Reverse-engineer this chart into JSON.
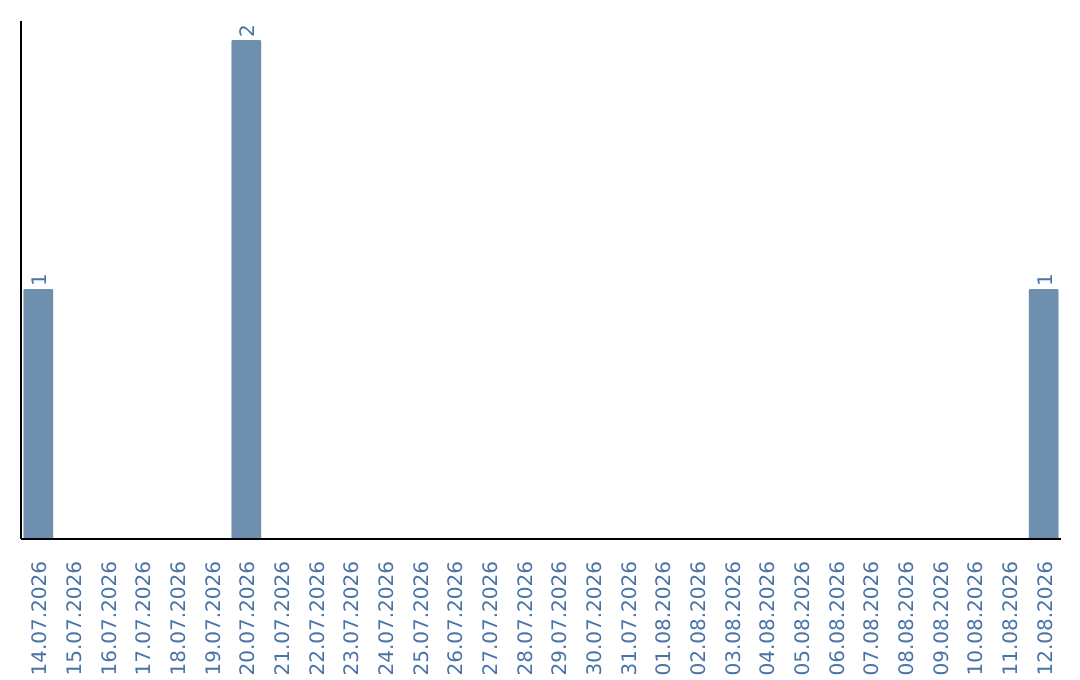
{
  "chart_data": {
    "type": "bar",
    "categories": [
      "14.07.2026",
      "15.07.2026",
      "16.07.2026",
      "17.07.2026",
      "18.07.2026",
      "19.07.2026",
      "20.07.2026",
      "21.07.2026",
      "22.07.2026",
      "23.07.2026",
      "24.07.2026",
      "25.07.2026",
      "26.07.2026",
      "27.07.2026",
      "28.07.2026",
      "29.07.2026",
      "30.07.2026",
      "31.07.2026",
      "01.08.2026",
      "02.08.2026",
      "03.08.2026",
      "04.08.2026",
      "05.08.2026",
      "06.08.2026",
      "07.08.2026",
      "08.08.2026",
      "09.08.2026",
      "10.08.2026",
      "11.08.2026",
      "12.08.2026"
    ],
    "values": [
      1,
      0,
      0,
      0,
      0,
      0,
      2,
      0,
      0,
      0,
      0,
      0,
      0,
      0,
      0,
      0,
      0,
      0,
      0,
      0,
      0,
      0,
      0,
      0,
      0,
      0,
      0,
      0,
      0,
      1
    ],
    "value_labels": [
      "1",
      null,
      null,
      null,
      null,
      null,
      "2",
      null,
      null,
      null,
      null,
      null,
      null,
      null,
      null,
      null,
      null,
      null,
      null,
      null,
      null,
      null,
      null,
      null,
      null,
      null,
      null,
      null,
      null,
      "1"
    ],
    "color": "#6f8fae"
  }
}
